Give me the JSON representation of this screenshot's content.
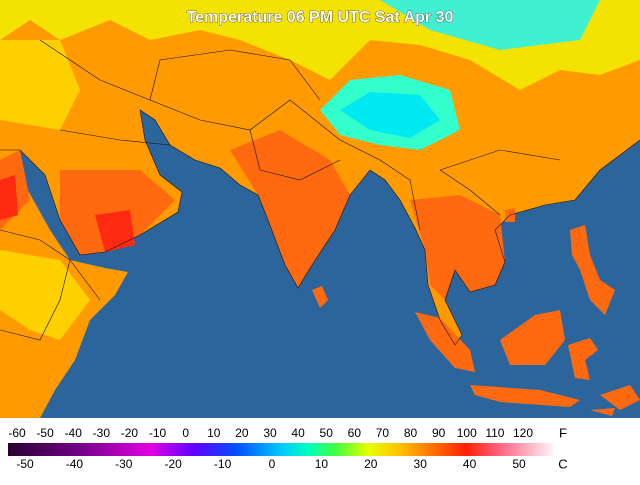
{
  "title": "Temperature 06 PM UTC Sat Apr 30",
  "legend": {
    "fahrenheit": {
      "unit": "F",
      "ticks": [
        -60,
        -50,
        -40,
        -30,
        -20,
        -10,
        0,
        10,
        20,
        30,
        40,
        50,
        60,
        70,
        80,
        90,
        100,
        110,
        120
      ]
    },
    "celsius": {
      "unit": "C",
      "ticks": [
        -50,
        -40,
        -30,
        -20,
        -10,
        0,
        10,
        20,
        30,
        40,
        50
      ]
    }
  }
}
